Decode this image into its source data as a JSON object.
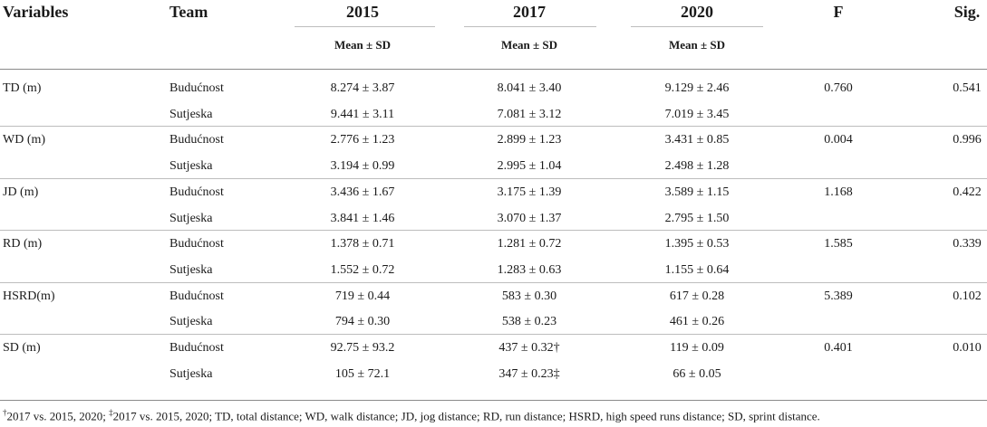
{
  "headers": {
    "variables": "Variables",
    "team": "Team",
    "y2015": "2015",
    "y2017": "2017",
    "y2020": "2020",
    "f": "F",
    "sig": "Sig."
  },
  "subheader": "Mean ± SD",
  "groups": [
    {
      "variable": "TD (m)",
      "f": "0.760",
      "sig": "0.541",
      "rows": [
        {
          "team": "Budućnost",
          "v2015": "8.274 ± 3.87",
          "v2017": "8.041 ± 3.40",
          "v2020": "9.129 ± 2.46"
        },
        {
          "team": "Sutjeska",
          "v2015": "9.441 ± 3.11",
          "v2017": "7.081 ± 3.12",
          "v2020": "7.019 ± 3.45"
        }
      ]
    },
    {
      "variable": "WD (m)",
      "f": "0.004",
      "sig": "0.996",
      "rows": [
        {
          "team": "Budućnost",
          "v2015": "2.776 ± 1.23",
          "v2017": "2.899 ± 1.23",
          "v2020": "3.431 ± 0.85"
        },
        {
          "team": "Sutjeska",
          "v2015": "3.194 ± 0.99",
          "v2017": "2.995 ± 1.04",
          "v2020": "2.498 ± 1.28"
        }
      ]
    },
    {
      "variable": "JD (m)",
      "f": "1.168",
      "sig": "0.422",
      "rows": [
        {
          "team": "Budućnost",
          "v2015": "3.436 ± 1.67",
          "v2017": "3.175 ± 1.39",
          "v2020": "3.589 ± 1.15"
        },
        {
          "team": "Sutjeska",
          "v2015": "3.841 ± 1.46",
          "v2017": "3.070 ± 1.37",
          "v2020": "2.795 ± 1.50"
        }
      ]
    },
    {
      "variable": "RD (m)",
      "f": "1.585",
      "sig": "0.339",
      "rows": [
        {
          "team": "Budućnost",
          "v2015": "1.378 ± 0.71",
          "v2017": "1.281 ± 0.72",
          "v2020": "1.395 ± 0.53"
        },
        {
          "team": "Sutjeska",
          "v2015": "1.552 ± 0.72",
          "v2017": "1.283 ± 0.63",
          "v2020": "1.155 ± 0.64"
        }
      ]
    },
    {
      "variable": "HSRD(m)",
      "f": "5.389",
      "sig": "0.102",
      "rows": [
        {
          "team": "Budućnost",
          "v2015": "719 ± 0.44",
          "v2017": "583 ± 0.30",
          "v2020": "617 ± 0.28"
        },
        {
          "team": "Sutjeska",
          "v2015": "794 ± 0.30",
          "v2017": "538 ± 0.23",
          "v2020": "461 ± 0.26"
        }
      ]
    },
    {
      "variable": "SD (m)",
      "f": "0.401",
      "sig": "0.010",
      "rows": [
        {
          "team": "Budućnost",
          "v2015": "92.75 ± 93.2",
          "v2017": "437 ± 0.32†",
          "v2020": "119 ± 0.09"
        },
        {
          "team": "Sutjeska",
          "v2015": "105 ± 72.1",
          "v2017": "347 ± 0.23‡",
          "v2020": "66 ± 0.05"
        }
      ]
    }
  ],
  "footnote": {
    "mark1": "†",
    "text1": "2017 vs. 2015, 2020; ",
    "mark2": "‡",
    "text2": "2017 vs. 2015, 2020; TD, total distance; WD, walk distance; JD, jog distance; RD, run distance; HSRD, high speed runs distance; SD, sprint distance."
  }
}
